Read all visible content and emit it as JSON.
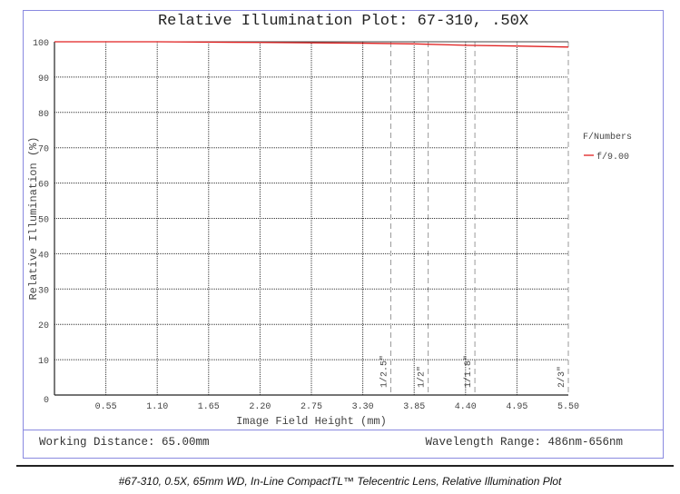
{
  "chart_data": {
    "type": "line",
    "title": "Relative Illumination Plot: 67-310, .50X",
    "xlabel": "Image Field Height (mm)",
    "ylabel": "Relative Illumination (%)",
    "xlim": [
      0,
      5.5
    ],
    "ylim": [
      0,
      100
    ],
    "x_ticks": [
      "0.55",
      "1.10",
      "1.65",
      "2.20",
      "2.75",
      "3.30",
      "3.85",
      "4.40",
      "4.95",
      "5.50"
    ],
    "y_ticks": [
      "0",
      "10",
      "20",
      "30",
      "40",
      "50",
      "60",
      "70",
      "80",
      "90",
      "100"
    ],
    "grid": true,
    "legend": {
      "title": "F/Numbers",
      "placement": "right"
    },
    "series": [
      {
        "name": "f/9.00",
        "color": "#e02020",
        "x": [
          0,
          1.1,
          2.2,
          3.3,
          3.85,
          4.4,
          4.95,
          5.5
        ],
        "y": [
          100,
          100,
          99.8,
          99.6,
          99.4,
          99.0,
          98.8,
          98.5
        ]
      }
    ],
    "sensor_markers": [
      {
        "label": "1/2.5\"",
        "x": 3.6
      },
      {
        "label": "1/2\"",
        "x": 4.0
      },
      {
        "label": "1/1.8\"",
        "x": 4.5
      },
      {
        "label": "2/3\"",
        "x": 5.5
      }
    ]
  },
  "footer": {
    "working_distance": "Working Distance: 65.00mm",
    "wavelength_range": "Wavelength Range: 486nm-656nm"
  },
  "caption": "#67-310, 0.5X, 65mm WD, In-Line CompactTL™ Telecentric Lens, Relative Illumination Plot"
}
